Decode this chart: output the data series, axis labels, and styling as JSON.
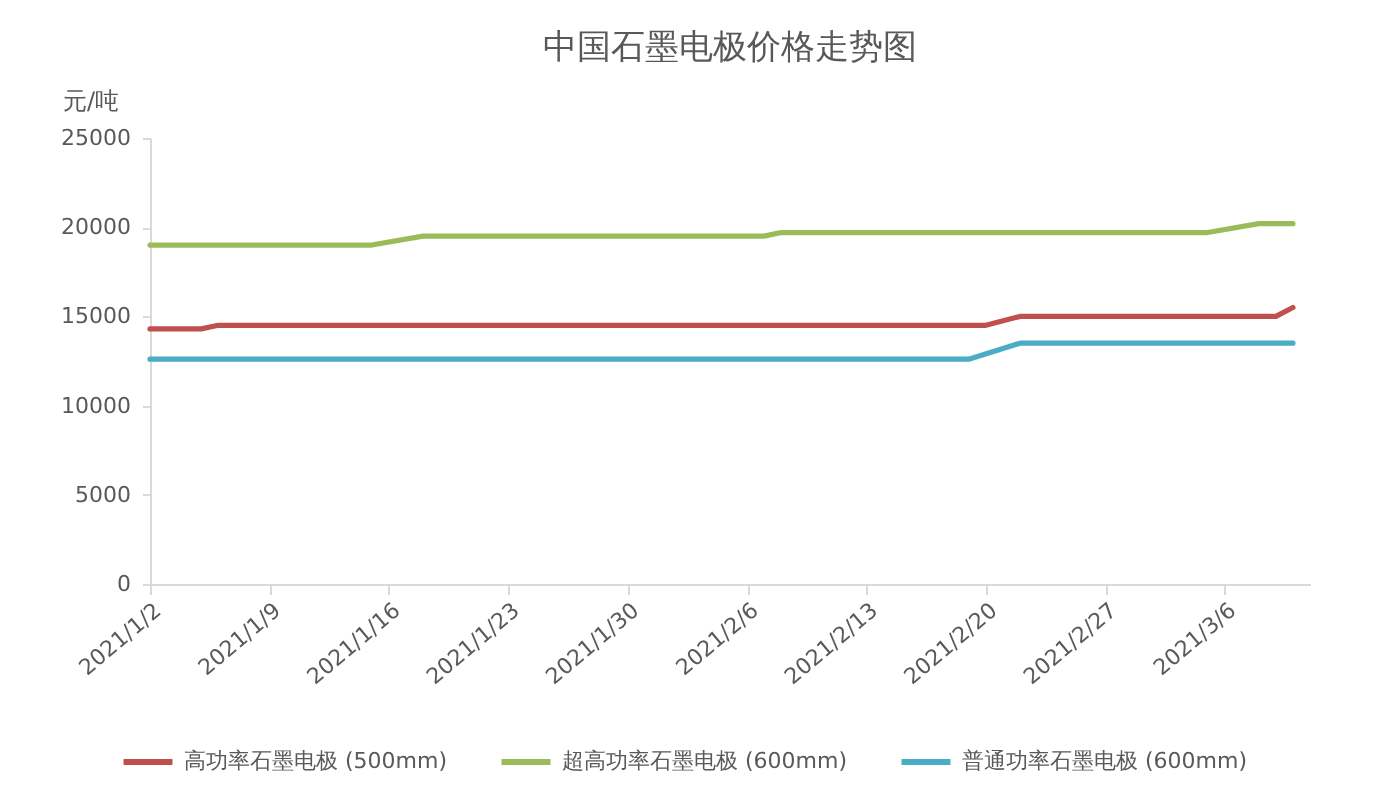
{
  "chart_data": {
    "type": "line",
    "title": "中国石墨电极价格走势图",
    "ylabel": "元/吨",
    "xlim": [
      "2021-01-02",
      "2021-03-11"
    ],
    "xticks": [
      {
        "value": "2021-01-02",
        "label": "2021/1/2"
      },
      {
        "value": "2021-01-09",
        "label": "2021/1/9"
      },
      {
        "value": "2021-01-16",
        "label": "2021/1/16"
      },
      {
        "value": "2021-01-23",
        "label": "2021/1/23"
      },
      {
        "value": "2021-01-30",
        "label": "2021/1/30"
      },
      {
        "value": "2021-02-06",
        "label": "2021/2/6"
      },
      {
        "value": "2021-02-13",
        "label": "2021/2/13"
      },
      {
        "value": "2021-02-20",
        "label": "2021/2/20"
      },
      {
        "value": "2021-02-27",
        "label": "2021/2/27"
      },
      {
        "value": "2021-03-06",
        "label": "2021/3/6"
      }
    ],
    "ylim": [
      0,
      25000
    ],
    "yticks": [
      0,
      5000,
      10000,
      15000,
      20000,
      25000
    ],
    "series": [
      {
        "name": "高功率石墨电极 (500mm)",
        "color": "#c0504d",
        "x": [
          "2021-01-02",
          "2021-01-05",
          "2021-01-06",
          "2021-02-20",
          "2021-02-22",
          "2021-03-09",
          "2021-03-10"
        ],
        "values": [
          14300,
          14300,
          14500,
          14500,
          15000,
          15000,
          15500
        ]
      },
      {
        "name": "超高功率石墨电极 (600mm)",
        "color": "#9bbb59",
        "x": [
          "2021-01-02",
          "2021-01-15",
          "2021-01-18",
          "2021-02-07",
          "2021-02-08",
          "2021-03-05",
          "2021-03-08",
          "2021-03-10"
        ],
        "values": [
          19000,
          19000,
          19500,
          19500,
          19700,
          19700,
          20200,
          20200
        ]
      },
      {
        "name": "普通功率石墨电极 (600mm)",
        "color": "#4bacc6",
        "x": [
          "2021-01-02",
          "2021-02-19",
          "2021-02-22",
          "2021-03-10"
        ],
        "values": [
          12600,
          12600,
          13500,
          13500
        ]
      }
    ],
    "legend": "bottom",
    "grid": false
  }
}
